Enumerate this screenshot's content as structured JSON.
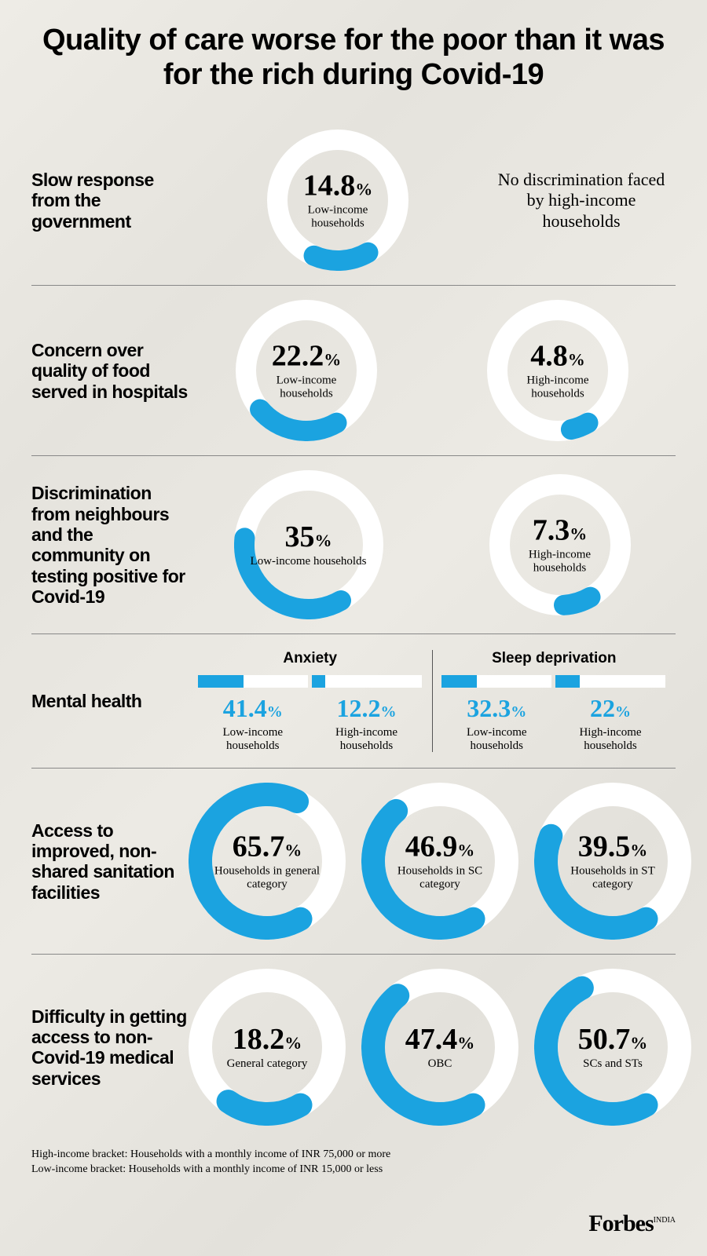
{
  "title": "Quality of care worse for the poor than it was for the rich during Covid-19",
  "accent": "#1ba3e0",
  "ring_bg": "#ffffff",
  "page_bg": "#e8e6e0",
  "sections": {
    "gov": {
      "label": "Slow response from the government",
      "low": {
        "value": 14.8,
        "caption": "Low-income households"
      },
      "note": "No discrimination faced by high-income households"
    },
    "food": {
      "label": "Concern over quality of food served in hospitals",
      "low": {
        "value": 22.2,
        "caption": "Low-income households"
      },
      "high": {
        "value": 4.8,
        "caption": "High-income households"
      }
    },
    "discrim": {
      "label": "Discrimination from neighbours and the community on testing positive for Covid-19",
      "low": {
        "value": 35,
        "caption": "Low-income households"
      },
      "high": {
        "value": 7.3,
        "caption": "High-income households"
      }
    },
    "mental": {
      "label": "Mental health",
      "anxiety": {
        "heading": "Anxiety",
        "low": {
          "value": 41.4,
          "caption": "Low-income households"
        },
        "high": {
          "value": 12.2,
          "caption": "High-income households"
        }
      },
      "sleep": {
        "heading": "Sleep deprivation",
        "low": {
          "value": 32.3,
          "caption": "Low-income households"
        },
        "high": {
          "value": 22,
          "caption": "High-income households"
        }
      }
    },
    "sanitation": {
      "label": "Access to improved, non-shared sanitation facilities",
      "items": [
        {
          "value": 65.7,
          "caption": "Households in general category"
        },
        {
          "value": 46.9,
          "caption": "Households in SC category"
        },
        {
          "value": 39.5,
          "caption": "Households in ST category"
        }
      ]
    },
    "access": {
      "label": "Difficulty in getting access to non-Covid-19 medical services",
      "items": [
        {
          "value": 18.2,
          "caption": "General category"
        },
        {
          "value": 47.4,
          "caption": "OBC"
        },
        {
          "value": 50.7,
          "caption": "SCs and STs"
        }
      ]
    }
  },
  "footnotes": [
    "High-income bracket: Households with a monthly income of INR 75,000 or more",
    "Low-income bracket: Households with a monthly income of INR 15,000 or less"
  ],
  "brand": "Forbes",
  "brand_sup": "INDIA",
  "donut_sizes": {
    "small": 180,
    "large": 200,
    "stroke": 26,
    "stroke_large": 30
  }
}
